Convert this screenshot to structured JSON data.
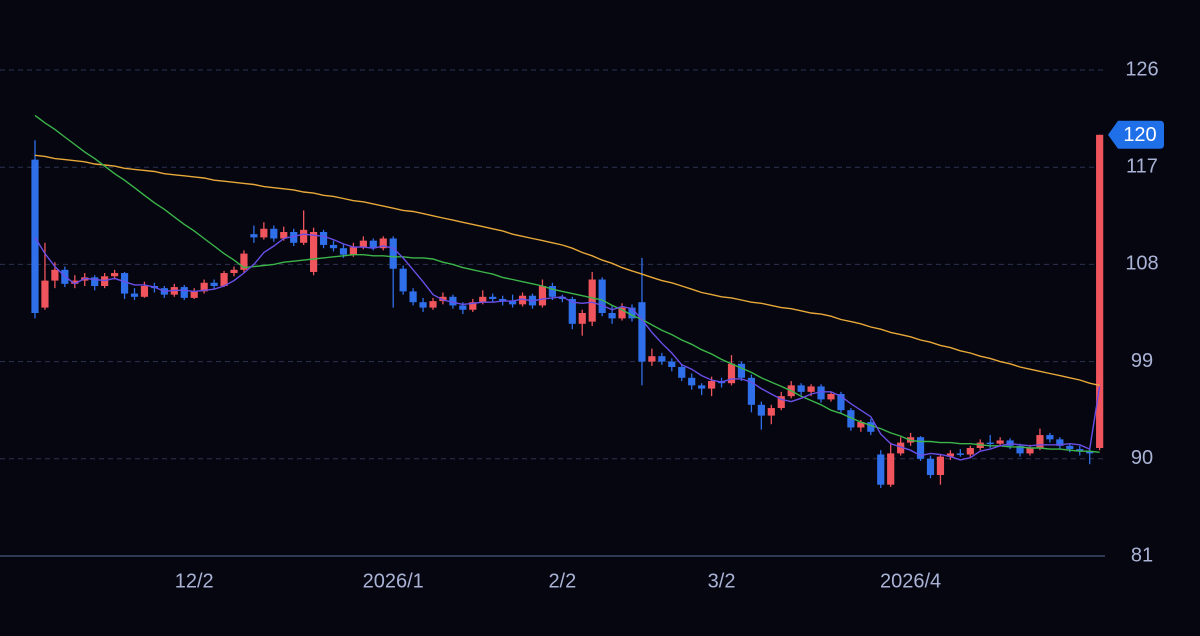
{
  "chart_data": {
    "type": "candlestick",
    "categories": [
      null,
      null,
      null,
      null,
      null,
      null,
      null,
      null,
      null,
      null,
      null,
      null,
      null,
      null,
      null,
      null,
      "12/2",
      null,
      null,
      null,
      null,
      null,
      null,
      null,
      null,
      null,
      null,
      null,
      null,
      null,
      null,
      null,
      null,
      null,
      null,
      null,
      "2026/1",
      null,
      null,
      null,
      null,
      null,
      null,
      null,
      null,
      null,
      null,
      null,
      null,
      null,
      null,
      null,
      null,
      "2/2",
      null,
      null,
      null,
      null,
      null,
      null,
      null,
      null,
      null,
      null,
      null,
      null,
      null,
      null,
      null,
      "3/2",
      null,
      null,
      null,
      null,
      null,
      null,
      null,
      null,
      null,
      null,
      null,
      null,
      null,
      null,
      null,
      null,
      null,
      null,
      "2026/4",
      null,
      null,
      null,
      null,
      null,
      null,
      null,
      null,
      null,
      null,
      null,
      null,
      null,
      null,
      null,
      null,
      null,
      null,
      null
    ],
    "ohlc": [
      [
        117.7,
        119.5,
        103.0,
        103.5
      ],
      [
        104.0,
        110.0,
        103.8,
        106.5
      ],
      [
        106.5,
        108.2,
        105.8,
        107.5
      ],
      [
        107.5,
        107.8,
        105.9,
        106.2
      ],
      [
        106.2,
        107.0,
        105.8,
        106.5
      ],
      [
        106.5,
        107.2,
        106.0,
        106.8
      ],
      [
        106.8,
        107.0,
        105.6,
        106.0
      ],
      [
        106.0,
        107.2,
        105.8,
        106.9
      ],
      [
        106.9,
        107.5,
        106.6,
        107.2
      ],
      [
        107.2,
        107.3,
        104.8,
        105.3
      ],
      [
        105.3,
        105.8,
        104.7,
        105.0
      ],
      [
        105.0,
        106.4,
        104.9,
        106.0
      ],
      [
        106.0,
        106.3,
        105.4,
        105.8
      ],
      [
        105.8,
        106.0,
        104.9,
        105.2
      ],
      [
        105.2,
        106.2,
        105.0,
        105.9
      ],
      [
        105.9,
        106.1,
        104.7,
        104.9
      ],
      [
        104.9,
        105.8,
        104.8,
        105.5
      ],
      [
        105.5,
        106.6,
        105.3,
        106.3
      ],
      [
        106.3,
        106.6,
        105.7,
        106.0
      ],
      [
        106.0,
        107.4,
        105.9,
        107.2
      ],
      [
        107.2,
        107.8,
        106.9,
        107.5
      ],
      [
        107.5,
        109.3,
        107.2,
        109.0
      ],
      [
        110.8,
        111.6,
        110.0,
        110.5
      ],
      [
        110.5,
        111.9,
        110.3,
        111.3
      ],
      [
        111.3,
        111.6,
        110.1,
        110.4
      ],
      [
        110.4,
        111.5,
        110.2,
        111.0
      ],
      [
        111.0,
        111.3,
        109.7,
        110.0
      ],
      [
        110.0,
        113.0,
        109.8,
        111.2
      ],
      [
        107.3,
        111.4,
        107.0,
        111.0
      ],
      [
        111.0,
        111.2,
        109.5,
        109.8
      ],
      [
        109.8,
        110.2,
        109.2,
        109.5
      ],
      [
        109.5,
        109.9,
        108.6,
        108.9
      ],
      [
        108.9,
        110.0,
        108.7,
        109.6
      ],
      [
        109.6,
        110.6,
        109.4,
        110.2
      ],
      [
        110.2,
        110.4,
        109.3,
        109.5
      ],
      [
        109.5,
        110.6,
        109.3,
        110.4
      ],
      [
        110.4,
        110.6,
        104.0,
        107.6
      ],
      [
        107.6,
        107.9,
        105.2,
        105.5
      ],
      [
        105.5,
        105.8,
        104.2,
        104.5
      ],
      [
        104.5,
        104.9,
        103.6,
        104.0
      ],
      [
        104.0,
        104.9,
        103.8,
        104.6
      ],
      [
        104.6,
        105.4,
        104.3,
        105.0
      ],
      [
        105.0,
        105.2,
        103.9,
        104.2
      ],
      [
        104.2,
        104.5,
        103.4,
        103.8
      ],
      [
        103.8,
        104.8,
        103.6,
        104.5
      ],
      [
        104.5,
        105.6,
        104.3,
        105.0
      ],
      [
        105.0,
        105.3,
        104.5,
        104.8
      ],
      [
        104.8,
        105.1,
        104.2,
        104.6
      ],
      [
        104.6,
        105.2,
        104.0,
        104.3
      ],
      [
        104.3,
        105.4,
        104.1,
        105.1
      ],
      [
        105.1,
        105.3,
        103.9,
        104.2
      ],
      [
        104.2,
        106.6,
        104.0,
        106.0
      ],
      [
        106.0,
        106.3,
        104.7,
        105.0
      ],
      [
        105.0,
        105.2,
        104.5,
        104.8
      ],
      [
        104.8,
        105.0,
        102.0,
        102.5
      ],
      [
        102.5,
        103.8,
        101.4,
        103.5
      ],
      [
        102.7,
        107.3,
        102.3,
        106.6
      ],
      [
        106.6,
        106.8,
        103.2,
        103.5
      ],
      [
        103.5,
        104.2,
        102.5,
        103.0
      ],
      [
        103.0,
        104.4,
        102.8,
        104.0
      ],
      [
        104.0,
        104.3,
        102.7,
        103.0
      ],
      [
        104.5,
        108.6,
        96.8,
        99.0
      ],
      [
        99.0,
        100.2,
        98.6,
        99.5
      ],
      [
        99.5,
        99.8,
        98.7,
        99.0
      ],
      [
        99.0,
        99.3,
        98.1,
        98.5
      ],
      [
        98.5,
        98.8,
        97.2,
        97.5
      ],
      [
        97.5,
        97.9,
        96.4,
        96.8
      ],
      [
        96.8,
        97.0,
        95.9,
        96.5
      ],
      [
        96.5,
        97.6,
        95.8,
        97.2
      ],
      [
        97.2,
        97.5,
        96.6,
        97.0
      ],
      [
        97.0,
        99.6,
        96.8,
        98.8
      ],
      [
        98.8,
        99.0,
        97.2,
        97.5
      ],
      [
        97.5,
        97.8,
        94.3,
        95.0
      ],
      [
        95.0,
        95.3,
        92.7,
        94.0
      ],
      [
        94.0,
        95.0,
        93.2,
        94.7
      ],
      [
        94.7,
        96.2,
        94.5,
        95.8
      ],
      [
        95.8,
        97.2,
        95.6,
        96.8
      ],
      [
        96.8,
        97.0,
        95.9,
        96.2
      ],
      [
        96.2,
        96.9,
        95.8,
        96.7
      ],
      [
        96.7,
        96.9,
        95.2,
        95.5
      ],
      [
        95.5,
        96.2,
        95.3,
        96.0
      ],
      [
        96.0,
        96.2,
        94.2,
        94.5
      ],
      [
        94.5,
        94.7,
        92.6,
        92.9
      ],
      [
        92.9,
        93.6,
        92.5,
        93.4
      ],
      [
        93.4,
        93.7,
        92.2,
        92.5
      ],
      [
        90.4,
        90.8,
        87.3,
        87.6
      ],
      [
        87.6,
        91.5,
        87.4,
        90.5
      ],
      [
        90.5,
        92.0,
        90.3,
        91.5
      ],
      [
        91.5,
        92.4,
        91.2,
        92.0
      ],
      [
        92.0,
        92.1,
        89.8,
        90.0
      ],
      [
        90.0,
        90.3,
        88.2,
        88.5
      ],
      [
        88.5,
        90.4,
        87.6,
        90.2
      ],
      [
        90.2,
        90.8,
        89.9,
        90.5
      ],
      [
        90.5,
        90.9,
        90.2,
        90.4
      ],
      [
        90.4,
        91.2,
        90.1,
        91.0
      ],
      [
        91.0,
        91.8,
        90.8,
        91.5
      ],
      [
        91.5,
        92.2,
        91.0,
        91.4
      ],
      [
        91.4,
        92.0,
        91.2,
        91.7
      ],
      [
        91.7,
        91.9,
        90.9,
        91.2
      ],
      [
        91.2,
        91.4,
        90.2,
        90.5
      ],
      [
        90.5,
        91.3,
        90.3,
        91.0
      ],
      [
        91.0,
        92.8,
        90.8,
        92.2
      ],
      [
        92.2,
        92.4,
        91.5,
        91.8
      ],
      [
        91.8,
        92.0,
        90.9,
        91.2
      ],
      [
        91.2,
        91.4,
        90.6,
        90.9
      ],
      [
        90.9,
        91.2,
        90.3,
        90.7
      ],
      [
        90.7,
        91.0,
        89.5,
        90.5
      ],
      [
        91.0,
        120.0,
        90.8,
        120.0
      ]
    ],
    "up_color": "#f0545c",
    "down_color": "#2f6fea",
    "lines": [
      {
        "color": "#e8a83a",
        "values": [
          118.1,
          118.0,
          117.8,
          117.7,
          117.6,
          117.5,
          117.3,
          117.2,
          117.1,
          116.9,
          116.8,
          116.7,
          116.6,
          116.4,
          116.3,
          116.2,
          116.1,
          116.0,
          115.8,
          115.7,
          115.6,
          115.5,
          115.4,
          115.2,
          115.1,
          115.0,
          114.9,
          114.7,
          114.6,
          114.4,
          114.3,
          114.1,
          113.9,
          113.8,
          113.6,
          113.4,
          113.2,
          113.0,
          112.9,
          112.7,
          112.5,
          112.3,
          112.1,
          111.9,
          111.7,
          111.5,
          111.3,
          111.1,
          110.8,
          110.6,
          110.4,
          110.2,
          110.0,
          109.8,
          109.5,
          109.1,
          108.8,
          108.4,
          108.1,
          107.7,
          107.4,
          107.1,
          106.8,
          106.5,
          106.3,
          106.0,
          105.7,
          105.4,
          105.2,
          105.0,
          104.9,
          104.7,
          104.5,
          104.4,
          104.2,
          104.0,
          103.9,
          103.7,
          103.5,
          103.4,
          103.2,
          102.9,
          102.7,
          102.5,
          102.2,
          102.0,
          101.7,
          101.5,
          101.3,
          101.0,
          100.8,
          100.5,
          100.3,
          100.0,
          99.8,
          99.5,
          99.3,
          99.0,
          98.8,
          98.5,
          98.3,
          98.1,
          97.9,
          97.7,
          97.5,
          97.3,
          97.0,
          96.8
        ]
      },
      {
        "color": "#3cb54a",
        "values": [
          121.8,
          121.1,
          120.5,
          119.8,
          119.1,
          118.4,
          117.8,
          117.1,
          116.4,
          115.8,
          115.1,
          114.4,
          113.7,
          113.1,
          112.4,
          111.7,
          111.1,
          110.4,
          109.7,
          109.0,
          108.4,
          107.7,
          107.8,
          107.9,
          108.0,
          108.2,
          108.3,
          108.4,
          108.5,
          108.6,
          108.7,
          108.8,
          108.9,
          108.9,
          108.8,
          108.8,
          108.7,
          108.7,
          108.6,
          108.6,
          108.5,
          108.2,
          108.0,
          107.7,
          107.5,
          107.3,
          107.1,
          106.8,
          106.6,
          106.4,
          106.2,
          106.0,
          105.7,
          105.5,
          105.3,
          105.1,
          104.9,
          104.7,
          104.2,
          103.8,
          103.3,
          102.9,
          102.4,
          101.9,
          101.5,
          101.0,
          100.6,
          100.1,
          99.7,
          99.2,
          98.8,
          98.4,
          98.0,
          97.5,
          97.1,
          96.7,
          96.3,
          95.8,
          95.4,
          95.0,
          94.5,
          94.2,
          93.8,
          93.4,
          93.1,
          92.8,
          92.4,
          92.1,
          91.7,
          91.6,
          91.6,
          91.5,
          91.5,
          91.4,
          91.4,
          91.3,
          91.2,
          91.2,
          91.1,
          91.1,
          91.0,
          91.0,
          90.9,
          90.9,
          90.8,
          90.7,
          90.7,
          90.6
        ]
      },
      {
        "color": "#6a4ee6",
        "values": [
          110.5,
          109.0,
          107.8,
          106.9,
          106.2,
          106.7,
          106.6,
          106.5,
          106.7,
          106.4,
          106.1,
          106.1,
          105.9,
          105.5,
          105.6,
          105.6,
          105.5,
          105.6,
          105.7,
          106.0,
          106.5,
          107.2,
          108.0,
          109.1,
          109.7,
          110.4,
          110.6,
          110.8,
          110.7,
          110.6,
          110.3,
          109.9,
          109.6,
          109.6,
          109.5,
          109.7,
          109.5,
          108.6,
          107.5,
          106.4,
          105.2,
          104.7,
          104.5,
          104.3,
          104.4,
          104.5,
          104.5,
          104.6,
          104.6,
          104.8,
          104.6,
          104.8,
          104.9,
          105.0,
          104.5,
          104.4,
          104.5,
          104.2,
          103.8,
          104.1,
          103.9,
          102.9,
          101.7,
          100.7,
          99.8,
          98.7,
          98.3,
          97.7,
          97.3,
          97.1,
          97.4,
          97.4,
          97.1,
          96.5,
          96.0,
          95.5,
          95.3,
          95.6,
          96.0,
          96.2,
          96.2,
          95.8,
          95.1,
          94.5,
          93.9,
          92.3,
          91.4,
          91.1,
          90.8,
          90.3,
          90.5,
          90.4,
          90.2,
          89.9,
          90.1,
          90.7,
          90.9,
          91.2,
          91.4,
          91.3,
          91.2,
          91.3,
          91.3,
          91.3,
          91.4,
          91.3,
          90.9,
          96.7
        ]
      }
    ],
    "ylim": [
      81,
      126
    ],
    "yticks": [
      81,
      90,
      99,
      108,
      117,
      126
    ],
    "grid": true,
    "last_price": 120,
    "last_price_color": "#1f6fe8"
  }
}
